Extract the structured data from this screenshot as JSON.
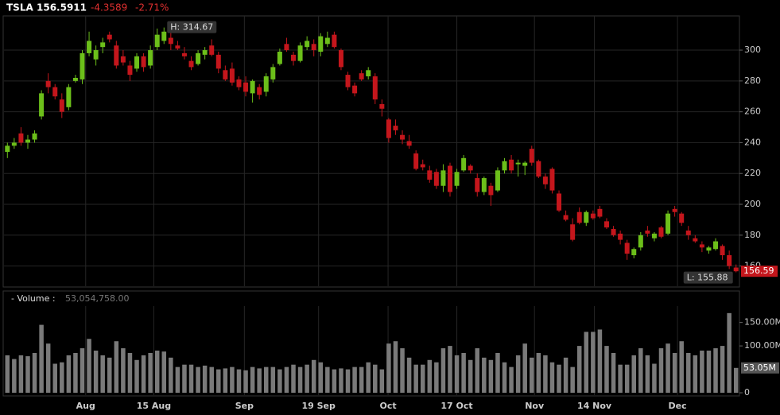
{
  "header": {
    "symbol": "TSLA",
    "price": "156.5911",
    "change": "-4.3589",
    "change_pct": "-2.71%"
  },
  "chart_data": [
    {
      "type": "candlestick",
      "open": [
        234,
        238,
        246,
        240,
        242,
        257,
        280,
        276,
        268,
        263,
        280,
        281,
        298,
        294,
        302,
        310,
        303,
        296,
        290,
        288,
        296,
        290,
        302,
        306,
        308,
        303,
        298,
        293,
        291,
        297,
        303,
        297,
        287,
        288,
        281,
        279,
        272,
        276,
        273,
        281,
        291,
        304,
        297,
        293,
        302,
        304,
        299,
        304,
        310,
        300,
        284,
        277,
        285,
        283,
        283,
        265,
        255,
        251,
        245,
        241,
        233,
        226,
        222,
        221,
        212,
        225,
        212,
        222,
        225,
        217,
        208,
        212,
        209,
        222,
        229,
        226,
        225,
        236,
        228,
        218,
        223,
        207,
        193,
        187,
        195,
        188,
        194,
        197,
        189,
        184,
        181,
        175,
        167,
        172,
        183,
        178,
        185,
        181,
        197,
        194,
        183,
        178,
        174,
        170,
        171,
        173,
        167,
        159
      ],
      "high": [
        240,
        243,
        250,
        245,
        248,
        274,
        285,
        278,
        272,
        278,
        284,
        300,
        312,
        303,
        308,
        312,
        306,
        300,
        293,
        298,
        298,
        303,
        314,
        314.67,
        312,
        306,
        302,
        296,
        300,
        302,
        307,
        299,
        290,
        292,
        283,
        283,
        281,
        278,
        285,
        291,
        301,
        308,
        299,
        305,
        309,
        307,
        311,
        312,
        312,
        301,
        286,
        279,
        287,
        289,
        285,
        268,
        256,
        255,
        248,
        245,
        235,
        229,
        225,
        223,
        226,
        227,
        223,
        232,
        226,
        220,
        218,
        214,
        224,
        230,
        232,
        229,
        228,
        238,
        229,
        220,
        224,
        209,
        196,
        191,
        198,
        196,
        196,
        199,
        191,
        186,
        183,
        177,
        172,
        182,
        186,
        182,
        186,
        196,
        199,
        195,
        186,
        180,
        176,
        173,
        178,
        174,
        170,
        161
      ],
      "low": [
        230,
        236,
        238,
        236,
        240,
        255,
        272,
        268,
        256,
        261,
        279,
        278,
        296,
        290,
        298,
        305,
        288,
        290,
        280,
        286,
        286,
        288,
        300,
        304,
        300,
        300,
        294,
        287,
        290,
        294,
        296,
        285,
        280,
        277,
        274,
        270,
        266,
        268,
        270,
        279,
        290,
        299,
        290,
        292,
        300,
        296,
        296,
        302,
        301,
        287,
        274,
        270,
        280,
        281,
        265,
        257,
        240,
        245,
        239,
        236,
        222,
        222,
        214,
        210,
        208,
        205,
        210,
        221,
        220,
        205,
        206,
        199,
        208,
        220,
        220,
        218,
        219,
        225,
        217,
        210,
        207,
        195,
        189,
        176,
        187,
        186,
        190,
        191,
        184,
        179,
        174,
        164,
        165,
        170,
        179,
        176,
        178,
        180,
        192,
        186,
        177,
        175,
        169,
        168,
        170,
        164,
        158,
        155.88
      ],
      "close": [
        238,
        240,
        240,
        242,
        246,
        272,
        276,
        270,
        260,
        276,
        282,
        298,
        306,
        300,
        305,
        307,
        290,
        292,
        284,
        296,
        289,
        300,
        310,
        312,
        304,
        301,
        296,
        289,
        298,
        300,
        297,
        288,
        281,
        279,
        276,
        273,
        280,
        271,
        283,
        289,
        299,
        300,
        293,
        303,
        306,
        300,
        309,
        308,
        302,
        289,
        276,
        272,
        281,
        287,
        268,
        262,
        243,
        248,
        242,
        238,
        223,
        224,
        216,
        212,
        222,
        208,
        221,
        230,
        222,
        208,
        217,
        206,
        222,
        228,
        222,
        227,
        227,
        227,
        218,
        213,
        209,
        196,
        190,
        177,
        188,
        195,
        191,
        192,
        185,
        180,
        177,
        168,
        171,
        180,
        181,
        181,
        179,
        194,
        195,
        188,
        180,
        176,
        172,
        172,
        176,
        167,
        160,
        156.59
      ],
      "up_color": "#6cbf1a",
      "down_color": "#c4161c",
      "xlim": [
        -0.5,
        107.5
      ],
      "xticks": [
        {
          "value": 11.5,
          "label": "Aug"
        },
        {
          "value": 21.5,
          "label": "15 Aug"
        },
        {
          "value": 34.8,
          "label": "Sep"
        },
        {
          "value": 45.7,
          "label": "19 Sep"
        },
        {
          "value": 55.9,
          "label": "Oct"
        },
        {
          "value": 66.0,
          "label": "17 Oct"
        },
        {
          "value": 77.4,
          "label": "Nov"
        },
        {
          "value": 86.2,
          "label": "14 Nov"
        },
        {
          "value": 98.4,
          "label": "Dec"
        }
      ],
      "ylim": [
        146.9,
        322.2
      ],
      "yticks": [
        160,
        180,
        200,
        220,
        240,
        260,
        280,
        300
      ],
      "grid": true,
      "high_label": "H: 314.67",
      "low_label": "L: 155.88",
      "last_label": "156.59"
    },
    {
      "type": "bar",
      "legend": "- Volume :",
      "legend_value": "53,054,758.00",
      "color": "#7a7a7a",
      "values": [
        80,
        72,
        80,
        78,
        85,
        145,
        105,
        62,
        65,
        80,
        85,
        95,
        115,
        90,
        80,
        75,
        110,
        95,
        85,
        70,
        80,
        85,
        90,
        88,
        75,
        55,
        60,
        60,
        55,
        58,
        55,
        50,
        52,
        55,
        50,
        48,
        55,
        52,
        55,
        55,
        50,
        55,
        60,
        55,
        60,
        70,
        65,
        55,
        50,
        52,
        50,
        55,
        55,
        65,
        60,
        50,
        105,
        110,
        95,
        75,
        60,
        60,
        70,
        65,
        95,
        100,
        80,
        85,
        70,
        95,
        75,
        70,
        85,
        65,
        55,
        80,
        105,
        75,
        85,
        80,
        65,
        60,
        75,
        55,
        100,
        130,
        130,
        135,
        100,
        85,
        60,
        60,
        80,
        95,
        80,
        62,
        95,
        105,
        85,
        110,
        85,
        80,
        90,
        90,
        95,
        100,
        170,
        53.05
      ],
      "ylim": [
        -5,
        185
      ],
      "yticks": [
        0,
        {
          "value": 100,
          "label": "100.00M"
        },
        {
          "value": 150,
          "label": "150.00M"
        }
      ],
      "last_label": "53.05M"
    }
  ]
}
